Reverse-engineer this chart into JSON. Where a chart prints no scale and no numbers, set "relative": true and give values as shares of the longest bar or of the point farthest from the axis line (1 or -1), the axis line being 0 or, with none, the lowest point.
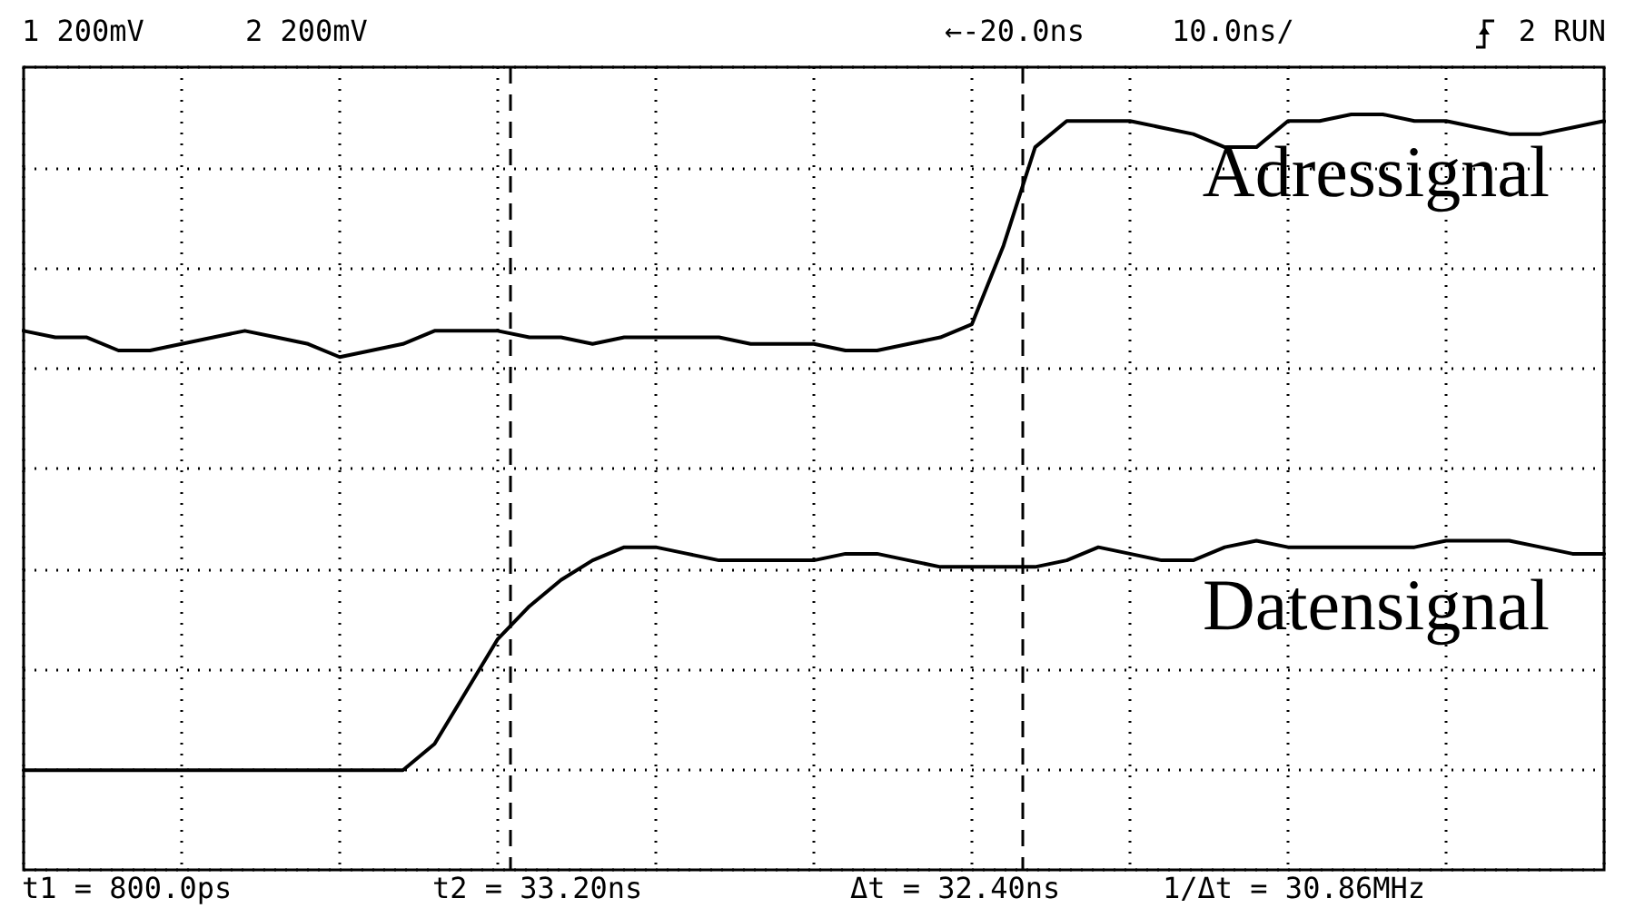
{
  "chart_data": {
    "type": "line",
    "relative": true,
    "grid": true,
    "marker": "none",
    "line_style": "solid",
    "categories": [
      null,
      null,
      null,
      null,
      null,
      null,
      null,
      null,
      null,
      null,
      null,
      null,
      null,
      null,
      null,
      null,
      null,
      null,
      null,
      null,
      null,
      null,
      null,
      null,
      null,
      null,
      null,
      null,
      null,
      null,
      null,
      null,
      null,
      null,
      null,
      null,
      null,
      null,
      null,
      null,
      null,
      null,
      null,
      null,
      null,
      null,
      null,
      null,
      null,
      null,
      null
    ],
    "series": [
      {
        "name": "Adressignal",
        "color": "#000000",
        "values": [
          0.67,
          0.66,
          0.66,
          0.64,
          0.64,
          0.65,
          0.66,
          0.67,
          0.66,
          0.65,
          0.63,
          0.64,
          0.65,
          0.67,
          0.67,
          0.67,
          0.66,
          0.66,
          0.65,
          0.66,
          0.66,
          0.66,
          0.66,
          0.65,
          0.65,
          0.65,
          0.64,
          0.64,
          0.65,
          0.66,
          0.68,
          0.8,
          0.95,
          0.99,
          0.99,
          0.99,
          0.98,
          0.97,
          0.95,
          0.95,
          0.99,
          0.99,
          1,
          1,
          0.99,
          0.99,
          0.98,
          0.97,
          0.97,
          0.98,
          0.99
        ]
      },
      {
        "name": "Datensignal",
        "color": "#000000",
        "values": [
          0,
          0,
          0,
          0,
          0,
          0,
          0,
          0,
          0,
          0,
          0,
          0,
          0,
          0.04,
          0.12,
          0.2,
          0.25,
          0.29,
          0.32,
          0.34,
          0.34,
          0.33,
          0.32,
          0.32,
          0.32,
          0.32,
          0.33,
          0.33,
          0.32,
          0.31,
          0.31,
          0.31,
          0.31,
          0.32,
          0.34,
          0.33,
          0.32,
          0.32,
          0.34,
          0.35,
          0.34,
          0.34,
          0.34,
          0.34,
          0.34,
          0.35,
          0.35,
          0.35,
          0.34,
          0.33,
          0.33
        ]
      }
    ],
    "annotations": [
      "1 200mV",
      "2 200mV",
      "←-20.0ns",
      "10.0ns/",
      "2 RUN",
      "t1 = 800.0ps",
      "t2 = 33.20ns",
      "Δt = 32.40ns",
      "1/Δt = 30.86MHz"
    ]
  }
}
